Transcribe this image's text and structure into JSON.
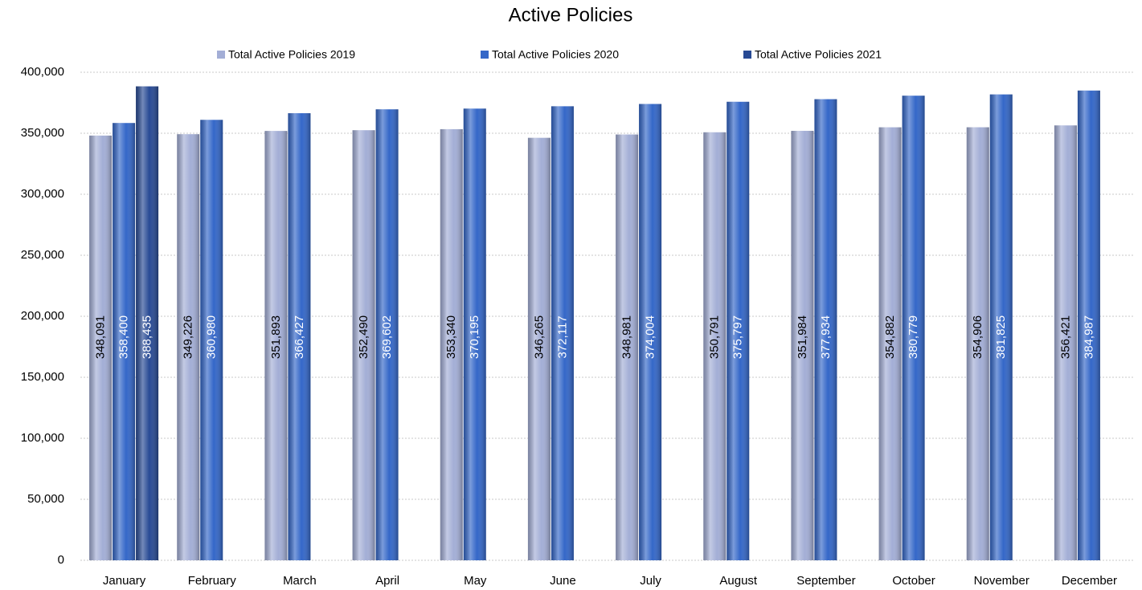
{
  "chart_data": {
    "type": "bar",
    "title": "Active Policies",
    "categories": [
      "January",
      "February",
      "March",
      "April",
      "May",
      "June",
      "July",
      "August",
      "September",
      "October",
      "November",
      "December"
    ],
    "series": [
      {
        "name": "Total Active Policies 2019",
        "color": "#a3aed6",
        "values": [
          348091,
          349226,
          351893,
          352490,
          353340,
          346265,
          348981,
          350791,
          351984,
          354882,
          354906,
          356421
        ],
        "value_labels": [
          "348,091",
          "349,226",
          "351,893",
          "352,490",
          "353,340",
          "346,265",
          "348,981",
          "350,791",
          "351,984",
          "354,882",
          "354,906",
          "356,421"
        ]
      },
      {
        "name": "Total Active Policies 2020",
        "color": "#3467c8",
        "values": [
          358400,
          360980,
          366427,
          369602,
          370195,
          372117,
          374004,
          375797,
          377934,
          380779,
          381825,
          384987
        ],
        "value_labels": [
          "358,400",
          "360,980",
          "366,427",
          "369,602",
          "370,195",
          "372,117",
          "374,004",
          "375,797",
          "377,934",
          "380,779",
          "381,825",
          "384,987"
        ]
      },
      {
        "name": "Total Active Policies 2021",
        "color": "#284a94",
        "values": [
          388435,
          null,
          null,
          null,
          null,
          null,
          null,
          null,
          null,
          null,
          null,
          null
        ],
        "value_labels": [
          "388,435",
          null,
          null,
          null,
          null,
          null,
          null,
          null,
          null,
          null,
          null,
          null
        ]
      }
    ],
    "ylim": [
      0,
      400000
    ],
    "yticks": [
      0,
      {
        "value": 50000,
        "label": "50,000"
      },
      {
        "value": 100000,
        "label": "100,000"
      },
      {
        "value": 150000,
        "label": "150,000"
      },
      {
        "value": 200000,
        "label": "200,000"
      },
      {
        "value": 250000,
        "label": "250,000"
      },
      {
        "value": 300000,
        "label": "300,000"
      },
      {
        "value": 350000,
        "label": "350,000"
      },
      {
        "value": 400000,
        "label": "400,000"
      }
    ],
    "grid": true,
    "legend": "top"
  }
}
